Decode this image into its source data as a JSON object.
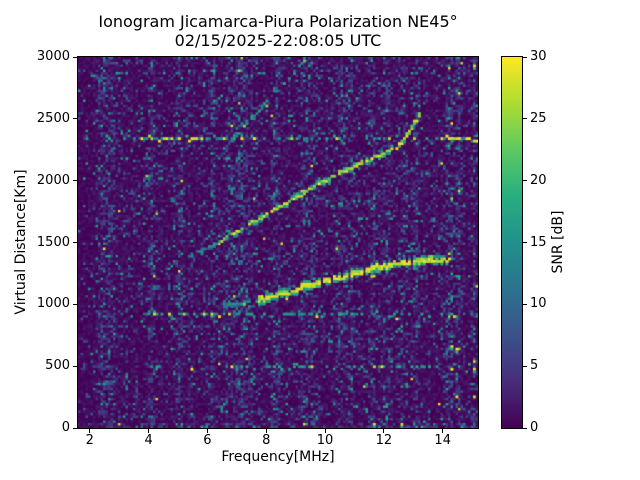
{
  "chart_data": {
    "type": "heatmap",
    "title": "Ionogram Jicamarca-Piura Polarization NE45°",
    "subtitle": "02/15/2025-22:08:05 UTC",
    "xlabel": "Frequency[MHz]",
    "ylabel": "Virtual Distance[Km]",
    "xlim": [
      1.6,
      15.2
    ],
    "ylim": [
      0,
      3000
    ],
    "xticks": [
      2,
      4,
      6,
      8,
      10,
      12,
      14
    ],
    "yticks": [
      0,
      500,
      1000,
      1500,
      2000,
      2500,
      3000
    ],
    "colorbar": {
      "label": "SNR [dB]",
      "ticks": [
        0,
        5,
        10,
        15,
        20,
        25,
        30
      ],
      "range": [
        0,
        30
      ],
      "colormap": "viridis"
    },
    "colormap_anchors": [
      {
        "t": 0.0,
        "hex": "#440154"
      },
      {
        "t": 0.125,
        "hex": "#472d7b"
      },
      {
        "t": 0.25,
        "hex": "#3b528b"
      },
      {
        "t": 0.375,
        "hex": "#2c728e"
      },
      {
        "t": 0.5,
        "hex": "#21918c"
      },
      {
        "t": 0.625,
        "hex": "#28ae80"
      },
      {
        "t": 0.75,
        "hex": "#5ec962"
      },
      {
        "t": 0.875,
        "hex": "#addc30"
      },
      {
        "t": 1.0,
        "hex": "#fde725"
      }
    ],
    "background_color": "#440154",
    "resolution": {
      "freq_bins": 160,
      "range_bins": 148
    },
    "traces": [
      {
        "name": "f-region-echo-1st-hop",
        "style": "bright",
        "gap": 0.1,
        "halo": 0.6,
        "ramp_until": 7.7,
        "points": [
          [
            6.55,
            1000
          ],
          [
            7.0,
            1003
          ],
          [
            7.5,
            1013
          ],
          [
            8.0,
            1045
          ],
          [
            8.5,
            1078
          ],
          [
            9.0,
            1112
          ],
          [
            9.5,
            1148
          ],
          [
            10.0,
            1182
          ],
          [
            10.5,
            1214
          ],
          [
            11.0,
            1244
          ],
          [
            11.5,
            1272
          ],
          [
            12.0,
            1300
          ],
          [
            12.5,
            1322
          ],
          [
            13.0,
            1338
          ],
          [
            13.5,
            1350
          ],
          [
            14.0,
            1358
          ],
          [
            14.35,
            1362
          ]
        ]
      },
      {
        "name": "second-hop-echo",
        "style": "medium",
        "gap": 0.18,
        "halo": 0.5,
        "ramp_until": 6.4,
        "points": [
          [
            5.5,
            1390
          ],
          [
            6.0,
            1455
          ],
          [
            6.5,
            1520
          ],
          [
            7.0,
            1590
          ],
          [
            7.5,
            1660
          ],
          [
            8.0,
            1730
          ],
          [
            8.5,
            1800
          ],
          [
            9.0,
            1868
          ],
          [
            9.5,
            1935
          ],
          [
            10.0,
            2000
          ],
          [
            10.5,
            2062
          ],
          [
            11.0,
            2120
          ],
          [
            11.5,
            2172
          ],
          [
            12.0,
            2222
          ],
          [
            12.3,
            2262
          ]
        ]
      },
      {
        "name": "cusp-echo",
        "style": "medium",
        "gap": 0.2,
        "halo": 0.35,
        "ramp_until": 0,
        "points": [
          [
            12.45,
            2268
          ],
          [
            12.6,
            2300
          ],
          [
            12.72,
            2338
          ],
          [
            12.85,
            2385
          ],
          [
            12.97,
            2435
          ],
          [
            13.1,
            2490
          ],
          [
            13.22,
            2545
          ],
          [
            13.3,
            2590
          ]
        ]
      },
      {
        "name": "third-hop-echo-faint",
        "style": "faint",
        "gap": 0.5,
        "halo": 0.25,
        "ramp_until": 0,
        "points": [
          [
            6.7,
            2300
          ],
          [
            7.2,
            2430
          ],
          [
            7.7,
            2550
          ],
          [
            8.2,
            2680
          ],
          [
            8.7,
            2800
          ],
          [
            9.2,
            2940
          ],
          [
            9.33,
            2990
          ]
        ]
      }
    ],
    "interference_bands": [
      {
        "km": 2350,
        "segments": [
          {
            "f": [
              1.7,
              3.8
            ],
            "density": 0.4,
            "yellow": 0.12
          },
          {
            "f": [
              3.8,
              6.6
            ],
            "density": 0.75,
            "yellow": 0.55
          },
          {
            "f": [
              6.6,
              10.4
            ],
            "density": 0.5,
            "yellow": 0.18
          },
          {
            "f": [
              10.4,
              12.2
            ],
            "density": 0.28,
            "yellow": 0.08
          },
          {
            "f": [
              12.2,
              13.8
            ],
            "density": 0.45,
            "yellow": 0.2
          },
          {
            "f": [
              13.8,
              15.2
            ],
            "density": 0.85,
            "yellow": 0.6
          }
        ]
      },
      {
        "km": 915,
        "segments": [
          {
            "f": [
              3.9,
              6.3
            ],
            "density": 0.35,
            "yellow": 0.22
          },
          {
            "f": [
              6.3,
              10.5
            ],
            "density": 0.45,
            "yellow": 0.18
          },
          {
            "f": [
              10.5,
              15.2
            ],
            "density": 0.33,
            "yellow": 0.1
          }
        ]
      },
      {
        "km": 500,
        "segments": [
          {
            "f": [
              3.9,
              7.0
            ],
            "density": 0.3,
            "yellow": 0.15
          },
          {
            "f": [
              7.0,
              15.2
            ],
            "density": 0.28,
            "yellow": 0.08
          }
        ]
      }
    ],
    "noise_stripes_mhz": [
      {
        "f": 2.55,
        "width": 0.22,
        "strength": 2.2
      },
      {
        "f": 4.1,
        "width": 0.1,
        "strength": 1.4
      },
      {
        "f": 5.05,
        "width": 0.1,
        "strength": 1.3
      },
      {
        "f": 6.2,
        "width": 0.1,
        "strength": 1.5
      },
      {
        "f": 7.1,
        "width": 0.4,
        "strength": 1.6
      },
      {
        "f": 8.35,
        "width": 0.12,
        "strength": 1.6
      },
      {
        "f": 9.35,
        "width": 0.15,
        "strength": 1.7
      },
      {
        "f": 9.65,
        "width": 0.1,
        "strength": 1.3
      },
      {
        "f": 10.55,
        "width": 0.12,
        "strength": 1.9
      },
      {
        "f": 10.9,
        "width": 0.1,
        "strength": 1.5
      },
      {
        "f": 11.6,
        "width": 0.1,
        "strength": 1.6
      },
      {
        "f": 12.1,
        "width": 0.1,
        "strength": 1.7
      },
      {
        "f": 12.65,
        "width": 0.1,
        "strength": 1.5
      },
      {
        "f": 13.1,
        "width": 0.1,
        "strength": 1.8
      },
      {
        "f": 14.25,
        "width": 0.09,
        "strength": 2.6,
        "hot": 5
      },
      {
        "f": 14.55,
        "width": 0.09,
        "strength": 2.2,
        "hot": 3
      },
      {
        "f": 15.08,
        "width": 0.07,
        "strength": 1.8,
        "hot": 2
      }
    ],
    "hot_dots": [
      [
        14.3,
        2350
      ],
      [
        14.6,
        2350
      ],
      [
        15.1,
        2920
      ],
      [
        14.35,
        905
      ],
      [
        14.3,
        650
      ],
      [
        14.45,
        640
      ],
      [
        14.3,
        480
      ],
      [
        15.05,
        470
      ],
      [
        14.5,
        255
      ],
      [
        15.1,
        250
      ],
      [
        11.65,
        25
      ],
      [
        12.6,
        30
      ],
      [
        4.15,
        915
      ]
    ]
  }
}
